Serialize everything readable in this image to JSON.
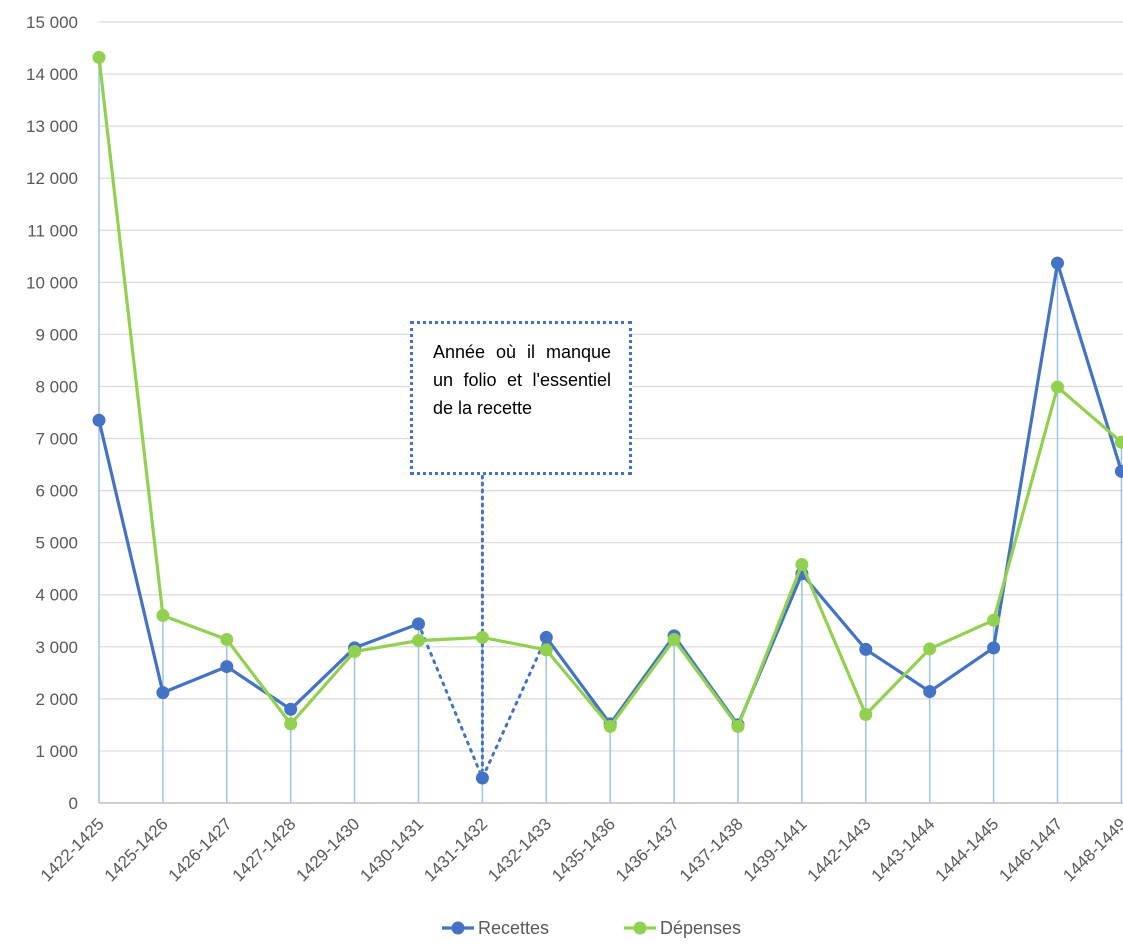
{
  "chart_data": {
    "type": "line",
    "categories": [
      "1422-1425",
      "1425-1426",
      "1426-1427",
      "1427-1428",
      "1429-1430",
      "1430-1431",
      "1431-1432",
      "1432-1433",
      "1435-1436",
      "1436-1437",
      "1437-1438",
      "1439-1441",
      "1442-1443",
      "1443-1444",
      "1444-1445",
      "1446-1447",
      "1448-1449"
    ],
    "series": [
      {
        "name": "Recettes",
        "color": "#4472c4",
        "values": [
          7350,
          2120,
          2620,
          1800,
          2980,
          3440,
          480,
          3180,
          1520,
          3210,
          1500,
          4400,
          2950,
          2140,
          2980,
          10370,
          6370
        ]
      },
      {
        "name": "Dépenses",
        "color": "#92d050",
        "values": [
          14320,
          3600,
          3140,
          1520,
          2910,
          3120,
          3180,
          2940,
          1470,
          3140,
          1470,
          4580,
          1700,
          2960,
          3510,
          7990,
          6930
        ]
      }
    ],
    "ylim": [
      0,
      15000
    ],
    "yticks": [
      0,
      1000,
      2000,
      3000,
      4000,
      5000,
      6000,
      7000,
      8000,
      9000,
      10000,
      11000,
      12000,
      13000,
      14000,
      15000
    ],
    "ytick_labels": [
      "0",
      "1 000",
      "2 000",
      "3 000",
      "4 000",
      "5 000",
      "6 000",
      "7 000",
      "8 000",
      "9 000",
      "10 000",
      "11 000",
      "12 000",
      "13 000",
      "14 000",
      "15 000"
    ],
    "dotted_segment": {
      "series": "Recettes",
      "category_index": 6
    },
    "annotation": {
      "text": "Année où il manque un folio et l'essentiel de la recette",
      "points_to": "1431-1432"
    },
    "legend": "bottom",
    "grid": "horizontal"
  }
}
